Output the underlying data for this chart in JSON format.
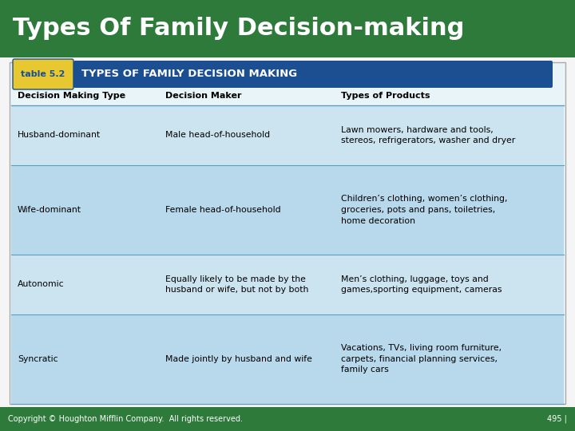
{
  "title": "Types Of Family Decision-making",
  "title_bg": "#2d7a3a",
  "title_color": "#ffffff",
  "table_label": "table 5.2",
  "table_header": "TYPES OF FAMILY DECISION MAKING",
  "header_bg": "#1b4f91",
  "header_color": "#ffffff",
  "table_label_bg": "#e8c830",
  "table_label_color": "#1b4f91",
  "col_headers": [
    "Decision Making Type",
    "Decision Maker",
    "Types of Products"
  ],
  "col_header_color": "#000000",
  "rows": [
    {
      "type": "Husband-dominant",
      "maker": "Male head-of-household",
      "products": "Lawn mowers, hardware and tools,\nstereos, refrigerators, washer and dryer"
    },
    {
      "type": "Wife-dominant",
      "maker": "Female head-of-household",
      "products": "Children’s clothing, women’s clothing,\ngroceries, pots and pans, toiletries,\nhome decoration"
    },
    {
      "type": "Autonomic",
      "maker": "Equally likely to be made by the\nhusband or wife, but not by both",
      "products": "Men’s clothing, luggage, toys and\ngames,sporting equipment, cameras"
    },
    {
      "type": "Syncratic",
      "maker": "Made jointly by husband and wife",
      "products": "Vacations, TVs, living room furniture,\ncarpets, financial planning services,\nfamily cars"
    }
  ],
  "row_bg_light": "#cce4f0",
  "row_bg_mid": "#b8d8ec",
  "table_border": "#5a9fc0",
  "footer_bg": "#2d7a3a",
  "footer_color": "#ffffff",
  "footer_left": "Copyright © Houghton Mifflin Company.  All rights reserved.",
  "footer_right": "495 |",
  "outer_bg": "#e8f4f8",
  "fig_bg": "#f5f5f5"
}
